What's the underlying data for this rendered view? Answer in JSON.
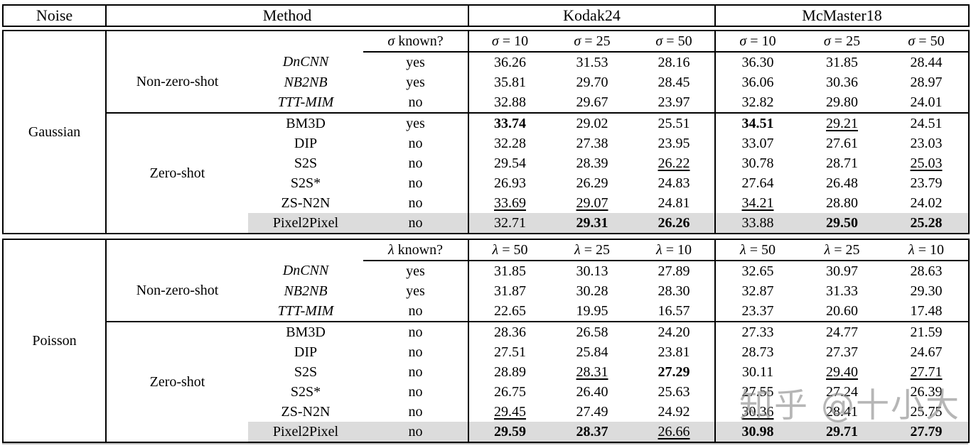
{
  "header": {
    "noise": "Noise",
    "method": "Method",
    "datasets": [
      "Kodak24",
      "McMaster18"
    ]
  },
  "sections": [
    {
      "noise": "Gaussian",
      "known": {
        "sym": "σ",
        "rest": "known?"
      },
      "cols": [
        {
          "sym": "σ",
          "rest": "= 10"
        },
        {
          "sym": "σ",
          "rest": "= 25"
        },
        {
          "sym": "σ",
          "rest": "= 50"
        },
        {
          "sym": "σ",
          "rest": "= 10"
        },
        {
          "sym": "σ",
          "rest": "= 25"
        },
        {
          "sym": "σ",
          "rest": "= 50"
        }
      ],
      "groups": [
        {
          "label": "Non-zero-shot",
          "rows": [
            {
              "method": "DnCNN",
              "italic": true,
              "known": "yes",
              "highlight": false,
              "values": [
                {
                  "v": "36.26",
                  "f": ""
                },
                {
                  "v": "31.53",
                  "f": ""
                },
                {
                  "v": "28.16",
                  "f": ""
                },
                {
                  "v": "36.30",
                  "f": ""
                },
                {
                  "v": "31.85",
                  "f": ""
                },
                {
                  "v": "28.44",
                  "f": ""
                }
              ]
            },
            {
              "method": "NB2NB",
              "italic": true,
              "known": "yes",
              "highlight": false,
              "values": [
                {
                  "v": "35.81",
                  "f": ""
                },
                {
                  "v": "29.70",
                  "f": ""
                },
                {
                  "v": "28.45",
                  "f": ""
                },
                {
                  "v": "36.06",
                  "f": ""
                },
                {
                  "v": "30.36",
                  "f": ""
                },
                {
                  "v": "28.97",
                  "f": ""
                }
              ]
            },
            {
              "method": "TTT-MIM",
              "italic": true,
              "known": "no",
              "highlight": false,
              "values": [
                {
                  "v": "32.88",
                  "f": ""
                },
                {
                  "v": "29.67",
                  "f": ""
                },
                {
                  "v": "23.97",
                  "f": ""
                },
                {
                  "v": "32.82",
                  "f": ""
                },
                {
                  "v": "29.80",
                  "f": ""
                },
                {
                  "v": "24.01",
                  "f": ""
                }
              ]
            }
          ]
        },
        {
          "label": "Zero-shot",
          "rows": [
            {
              "method": "BM3D",
              "italic": false,
              "known": "yes",
              "highlight": false,
              "values": [
                {
                  "v": "33.74",
                  "f": "b"
                },
                {
                  "v": "29.02",
                  "f": ""
                },
                {
                  "v": "25.51",
                  "f": ""
                },
                {
                  "v": "34.51",
                  "f": "b"
                },
                {
                  "v": "29.21",
                  "f": "u"
                },
                {
                  "v": "24.51",
                  "f": ""
                }
              ]
            },
            {
              "method": "DIP",
              "italic": false,
              "known": "no",
              "highlight": false,
              "values": [
                {
                  "v": "32.28",
                  "f": ""
                },
                {
                  "v": "27.38",
                  "f": ""
                },
                {
                  "v": "23.95",
                  "f": ""
                },
                {
                  "v": "33.07",
                  "f": ""
                },
                {
                  "v": "27.61",
                  "f": ""
                },
                {
                  "v": "23.03",
                  "f": ""
                }
              ]
            },
            {
              "method": "S2S",
              "italic": false,
              "known": "no",
              "highlight": false,
              "values": [
                {
                  "v": "29.54",
                  "f": ""
                },
                {
                  "v": "28.39",
                  "f": ""
                },
                {
                  "v": "26.22",
                  "f": "u"
                },
                {
                  "v": "30.78",
                  "f": ""
                },
                {
                  "v": "28.71",
                  "f": ""
                },
                {
                  "v": "25.03",
                  "f": "u"
                }
              ]
            },
            {
              "method": "S2S*",
              "italic": false,
              "known": "no",
              "highlight": false,
              "values": [
                {
                  "v": "26.93",
                  "f": ""
                },
                {
                  "v": "26.29",
                  "f": ""
                },
                {
                  "v": "24.83",
                  "f": ""
                },
                {
                  "v": "27.64",
                  "f": ""
                },
                {
                  "v": "26.48",
                  "f": ""
                },
                {
                  "v": "23.79",
                  "f": ""
                }
              ]
            },
            {
              "method": "ZS-N2N",
              "italic": false,
              "known": "no",
              "highlight": false,
              "values": [
                {
                  "v": "33.69",
                  "f": "u"
                },
                {
                  "v": "29.07",
                  "f": "u"
                },
                {
                  "v": "24.81",
                  "f": ""
                },
                {
                  "v": "34.21",
                  "f": "u"
                },
                {
                  "v": "28.80",
                  "f": ""
                },
                {
                  "v": "24.02",
                  "f": ""
                }
              ]
            },
            {
              "method": "Pixel2Pixel",
              "italic": false,
              "known": "no",
              "highlight": true,
              "values": [
                {
                  "v": "32.71",
                  "f": ""
                },
                {
                  "v": "29.31",
                  "f": "b"
                },
                {
                  "v": "26.26",
                  "f": "b"
                },
                {
                  "v": "33.88",
                  "f": ""
                },
                {
                  "v": "29.50",
                  "f": "b"
                },
                {
                  "v": "25.28",
                  "f": "b"
                }
              ]
            }
          ]
        }
      ]
    },
    {
      "noise": "Poisson",
      "known": {
        "sym": "λ",
        "rest": "known?"
      },
      "cols": [
        {
          "sym": "λ",
          "rest": "= 50"
        },
        {
          "sym": "λ",
          "rest": "= 25"
        },
        {
          "sym": "λ",
          "rest": "= 10"
        },
        {
          "sym": "λ",
          "rest": "= 50"
        },
        {
          "sym": "λ",
          "rest": "= 25"
        },
        {
          "sym": "λ",
          "rest": "= 10"
        }
      ],
      "groups": [
        {
          "label": "Non-zero-shot",
          "rows": [
            {
              "method": "DnCNN",
              "italic": true,
              "known": "yes",
              "highlight": false,
              "values": [
                {
                  "v": "31.85",
                  "f": ""
                },
                {
                  "v": "30.13",
                  "f": ""
                },
                {
                  "v": "27.89",
                  "f": ""
                },
                {
                  "v": "32.65",
                  "f": ""
                },
                {
                  "v": "30.97",
                  "f": ""
                },
                {
                  "v": "28.63",
                  "f": ""
                }
              ]
            },
            {
              "method": "NB2NB",
              "italic": true,
              "known": "yes",
              "highlight": false,
              "values": [
                {
                  "v": "31.87",
                  "f": ""
                },
                {
                  "v": "30.28",
                  "f": ""
                },
                {
                  "v": "28.30",
                  "f": ""
                },
                {
                  "v": "32.87",
                  "f": ""
                },
                {
                  "v": "31.33",
                  "f": ""
                },
                {
                  "v": "29.30",
                  "f": ""
                }
              ]
            },
            {
              "method": "TTT-MIM",
              "italic": true,
              "known": "no",
              "highlight": false,
              "values": [
                {
                  "v": "22.65",
                  "f": ""
                },
                {
                  "v": "19.95",
                  "f": ""
                },
                {
                  "v": "16.57",
                  "f": ""
                },
                {
                  "v": "23.37",
                  "f": ""
                },
                {
                  "v": "20.60",
                  "f": ""
                },
                {
                  "v": "17.48",
                  "f": ""
                }
              ]
            }
          ]
        },
        {
          "label": "Zero-shot",
          "rows": [
            {
              "method": "BM3D",
              "italic": false,
              "known": "no",
              "highlight": false,
              "values": [
                {
                  "v": "28.36",
                  "f": ""
                },
                {
                  "v": "26.58",
                  "f": ""
                },
                {
                  "v": "24.20",
                  "f": ""
                },
                {
                  "v": "27.33",
                  "f": ""
                },
                {
                  "v": "24.77",
                  "f": ""
                },
                {
                  "v": "21.59",
                  "f": ""
                }
              ]
            },
            {
              "method": "DIP",
              "italic": false,
              "known": "no",
              "highlight": false,
              "values": [
                {
                  "v": "27.51",
                  "f": ""
                },
                {
                  "v": "25.84",
                  "f": ""
                },
                {
                  "v": "23.81",
                  "f": ""
                },
                {
                  "v": "28.73",
                  "f": ""
                },
                {
                  "v": "27.37",
                  "f": ""
                },
                {
                  "v": "24.67",
                  "f": ""
                }
              ]
            },
            {
              "method": "S2S",
              "italic": false,
              "known": "no",
              "highlight": false,
              "values": [
                {
                  "v": "28.89",
                  "f": ""
                },
                {
                  "v": "28.31",
                  "f": "u"
                },
                {
                  "v": "27.29",
                  "f": "b"
                },
                {
                  "v": "30.11",
                  "f": ""
                },
                {
                  "v": "29.40",
                  "f": "u"
                },
                {
                  "v": "27.71",
                  "f": "u"
                }
              ]
            },
            {
              "method": "S2S*",
              "italic": false,
              "known": "no",
              "highlight": false,
              "values": [
                {
                  "v": "26.75",
                  "f": ""
                },
                {
                  "v": "26.40",
                  "f": ""
                },
                {
                  "v": "25.63",
                  "f": ""
                },
                {
                  "v": "27.55",
                  "f": ""
                },
                {
                  "v": "27.24",
                  "f": ""
                },
                {
                  "v": "26.39",
                  "f": ""
                }
              ]
            },
            {
              "method": "ZS-N2N",
              "italic": false,
              "known": "no",
              "highlight": false,
              "values": [
                {
                  "v": "29.45",
                  "f": "u"
                },
                {
                  "v": "27.49",
                  "f": ""
                },
                {
                  "v": "24.92",
                  "f": ""
                },
                {
                  "v": "30.36",
                  "f": "u"
                },
                {
                  "v": "28.41",
                  "f": ""
                },
                {
                  "v": "25.75",
                  "f": ""
                }
              ]
            },
            {
              "method": "Pixel2Pixel",
              "italic": false,
              "known": "no",
              "highlight": true,
              "values": [
                {
                  "v": "29.59",
                  "f": "b"
                },
                {
                  "v": "28.37",
                  "f": "b"
                },
                {
                  "v": "26.66",
                  "f": "u"
                },
                {
                  "v": "30.98",
                  "f": "b"
                },
                {
                  "v": "29.71",
                  "f": "b"
                },
                {
                  "v": "27.79",
                  "f": "b"
                }
              ]
            }
          ]
        }
      ]
    }
  ],
  "watermark": {
    "text": "知乎 @十小大"
  },
  "colors": {
    "highlight_row": "#dcdcdc",
    "border": "#000000",
    "watermark_gray": "#8a8a8a",
    "bottom_rule": "#bdbdbd"
  }
}
